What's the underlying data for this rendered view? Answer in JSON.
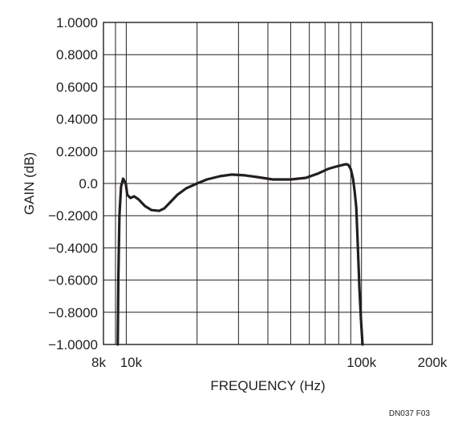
{
  "chart_data": {
    "type": "line",
    "xscale": "log",
    "xlim": [
      8000,
      200000
    ],
    "ylim": [
      -1.0,
      1.0
    ],
    "grid": true,
    "xlabel": "FREQUENCY (Hz)",
    "ylabel": "GAIN (dB)",
    "note": "DN037 F03",
    "y_ticks": [
      {
        "value": 1.0,
        "label": "1.0000"
      },
      {
        "value": 0.8,
        "label": "0.8000"
      },
      {
        "value": 0.6,
        "label": "0.6000"
      },
      {
        "value": 0.4,
        "label": "0.4000"
      },
      {
        "value": 0.2,
        "label": "0.2000"
      },
      {
        "value": 0.0,
        "label": "0.0"
      },
      {
        "value": -0.2,
        "label": "−0.2000"
      },
      {
        "value": -0.4,
        "label": "−0.4000"
      },
      {
        "value": -0.6,
        "label": "−0.6000"
      },
      {
        "value": -0.8,
        "label": "−0.8000"
      },
      {
        "value": -1.0,
        "label": "−1.0000"
      }
    ],
    "x_ticks": [
      {
        "value": 8000,
        "label": "8k"
      },
      {
        "value": 10000,
        "label": "10k"
      },
      {
        "value": 100000,
        "label": "100k"
      },
      {
        "value": 200000,
        "label": "200k"
      }
    ],
    "x_gridlines": [
      9000,
      10000,
      20000,
      30000,
      40000,
      50000,
      60000,
      70000,
      80000,
      90000,
      100000
    ],
    "series": [
      {
        "x": [
          9200,
          9250,
          9350,
          9500,
          9700,
          9950,
          10100,
          10400,
          10800,
          11300,
          12000,
          12800,
          13800,
          14500,
          15300,
          16500,
          18000,
          20000,
          22000,
          25000,
          28000,
          32000,
          36000,
          42000,
          50000,
          58000,
          65000,
          72000,
          78000,
          83000,
          86000,
          88000,
          90000,
          92000,
          93500,
          95000,
          96500,
          98000,
          99500,
          101000
        ],
        "y": [
          -1.0,
          -0.6,
          -0.2,
          -0.02,
          0.03,
          0.0,
          -0.07,
          -0.09,
          -0.08,
          -0.1,
          -0.14,
          -0.165,
          -0.17,
          -0.155,
          -0.12,
          -0.07,
          -0.03,
          0.0,
          0.025,
          0.045,
          0.055,
          0.05,
          0.04,
          0.025,
          0.025,
          0.035,
          0.06,
          0.09,
          0.105,
          0.115,
          0.12,
          0.115,
          0.09,
          0.03,
          -0.05,
          -0.15,
          -0.4,
          -0.65,
          -0.85,
          -1.0
        ]
      }
    ],
    "colors": {
      "line": "#231f20",
      "grid": "#231f20",
      "text": "#231f20"
    }
  }
}
